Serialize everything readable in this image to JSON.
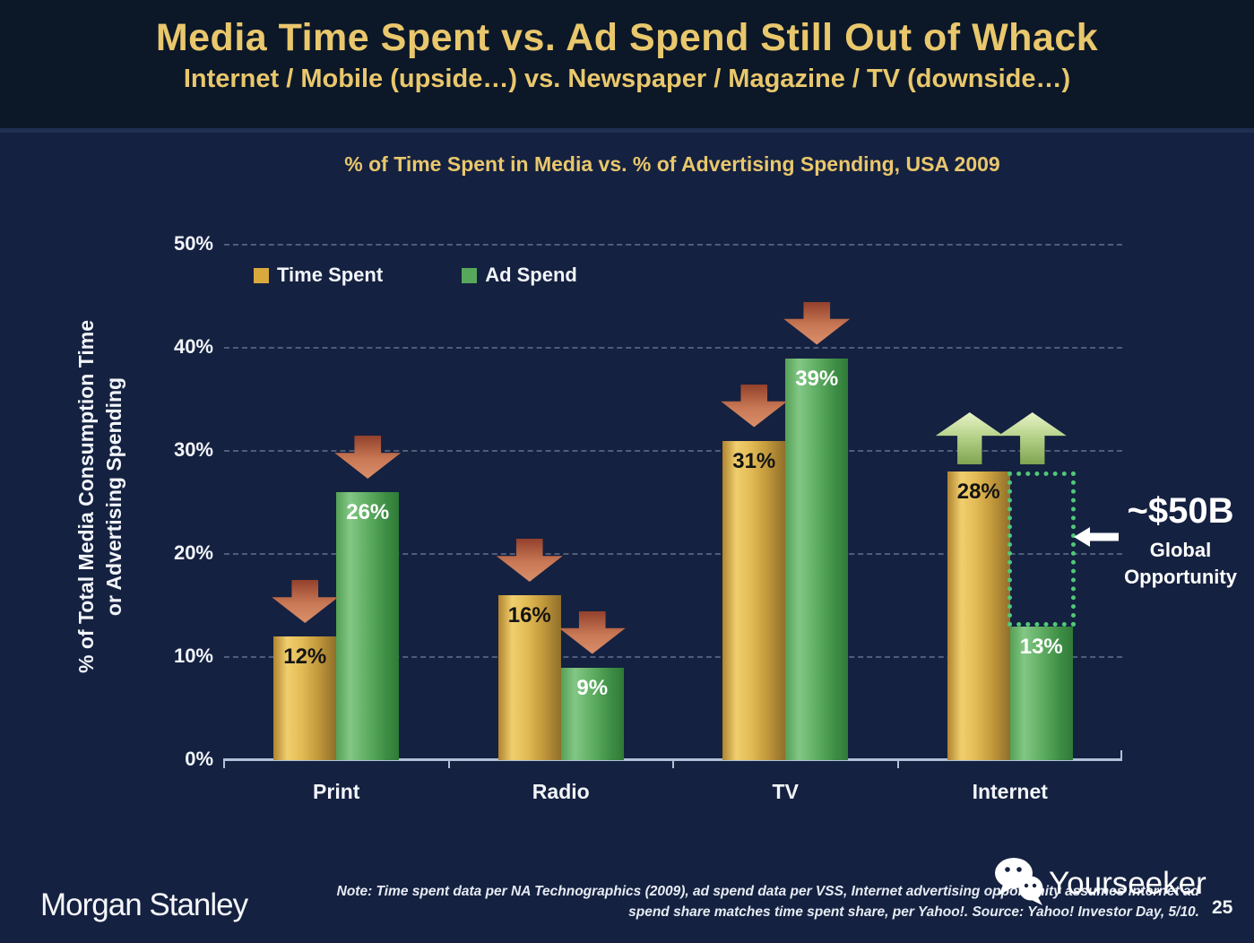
{
  "slide": {
    "title": "Media Time Spent vs. Ad Spend Still Out of Whack",
    "subtitle": "Internet / Mobile (upside…) vs. Newspaper / Magazine / TV (downside…)",
    "page_number": "25"
  },
  "chart_data": {
    "type": "bar",
    "title": "% of Time Spent in Media vs. % of Advertising Spending, USA 2009",
    "ylabel_line1": "% of Total Media Consumption Time",
    "ylabel_line2": "or Advertising Spending",
    "categories": [
      "Print",
      "Radio",
      "TV",
      "Internet"
    ],
    "series": [
      {
        "name": "Time Spent",
        "color": "#D9A93E",
        "values": [
          12,
          16,
          31,
          28
        ],
        "labels": [
          "12%",
          "16%",
          "31%",
          "28%"
        ]
      },
      {
        "name": "Ad Spend",
        "color": "#58A85C",
        "values": [
          26,
          9,
          39,
          13
        ],
        "labels": [
          "26%",
          "9%",
          "39%",
          "13%"
        ]
      }
    ],
    "ylim": [
      0,
      50
    ],
    "yticks": [
      "0%",
      "10%",
      "20%",
      "30%",
      "40%",
      "50%"
    ],
    "grid": "dashed horizontal gridlines at each 10% tick",
    "legend_position": "top-left inside plot",
    "annotations": {
      "arrows": [
        {
          "category": "Print",
          "series": 0,
          "dir": "down"
        },
        {
          "category": "Print",
          "series": 1,
          "dir": "down"
        },
        {
          "category": "Radio",
          "series": 0,
          "dir": "down"
        },
        {
          "category": "Radio",
          "series": 1,
          "dir": "down"
        },
        {
          "category": "TV",
          "series": 0,
          "dir": "down"
        },
        {
          "category": "TV",
          "series": 1,
          "dir": "down"
        },
        {
          "category": "Internet",
          "series": 0,
          "dir": "up"
        },
        {
          "category": "Internet",
          "series": 1,
          "dir": "up"
        }
      ],
      "opportunity_box": {
        "category": "Internet",
        "from_series": 0,
        "to_series": 1
      },
      "opportunity": {
        "value": "~$50B",
        "line1": "Global",
        "line2": "Opportunity"
      }
    }
  },
  "footer": {
    "brand": "Morgan Stanley",
    "note_line1": "Note: Time spent data per NA Technographics (2009), ad spend data per VSS, Internet advertising opportunity assumes internet ad",
    "note_line2": "spend share matches time spent share, per Yahoo!. Source: Yahoo! Investor Day, 5/10.",
    "watermark": "Yourseeker"
  },
  "colors": {
    "header_background": "#0C1828",
    "body_background": "#152140",
    "title_gold": "#E9C76C",
    "bar_gold": "#D9A93E",
    "bar_green": "#58A85C",
    "down_arrow": "#C97955",
    "up_arrow": "#B8D48C",
    "opportunity_box_green": "#50C878",
    "text_white": "#F2F5FA"
  }
}
